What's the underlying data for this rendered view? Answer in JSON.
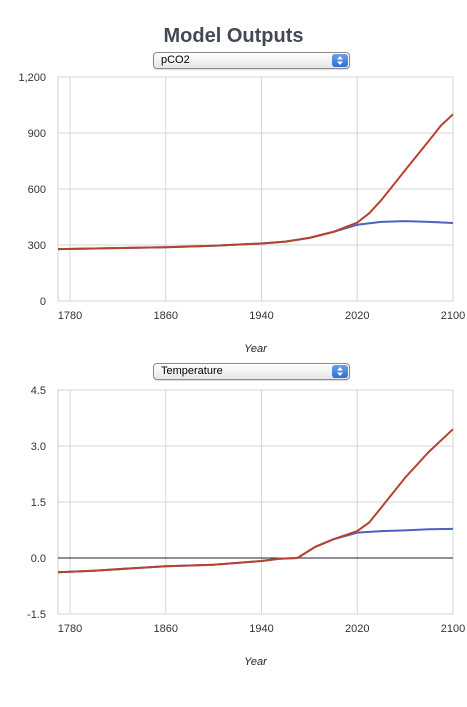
{
  "title": "Model Outputs",
  "chart_data": [
    {
      "type": "line",
      "selector_value": "pCO2",
      "xlabel": "Year",
      "ylabel": "",
      "xlim": [
        1770,
        2100
      ],
      "ylim": [
        0,
        1200
      ],
      "x_ticks": [
        "1780",
        "1860",
        "1940",
        "2020",
        "2100"
      ],
      "y_ticks": [
        "1,200",
        "900",
        "600",
        "300",
        "0"
      ],
      "grid": true,
      "series": [
        {
          "color": "#4a63c0",
          "x": [
            1770,
            1800,
            1860,
            1900,
            1940,
            1960,
            1980,
            2000,
            2020,
            2040,
            2060,
            2080,
            2100
          ],
          "y": [
            278,
            281,
            288,
            296,
            308,
            318,
            338,
            370,
            408,
            424,
            428,
            424,
            418
          ]
        },
        {
          "color": "#b8432d",
          "x": [
            1770,
            1800,
            1860,
            1900,
            1940,
            1960,
            1980,
            2000,
            2020,
            2030,
            2040,
            2050,
            2060,
            2070,
            2080,
            2090,
            2100
          ],
          "y": [
            278,
            281,
            288,
            296,
            308,
            318,
            338,
            370,
            420,
            470,
            540,
            620,
            700,
            780,
            860,
            940,
            1000
          ]
        }
      ]
    },
    {
      "type": "line",
      "selector_value": "Temperature",
      "xlabel": "Year",
      "ylabel": "",
      "xlim": [
        1770,
        2100
      ],
      "ylim": [
        -1.5,
        4.5
      ],
      "x_ticks": [
        "1780",
        "1860",
        "1940",
        "2020",
        "2100"
      ],
      "y_ticks": [
        "4.5",
        "3.0",
        "1.5",
        "0.0",
        "-1.5"
      ],
      "grid": true,
      "zero_line": true,
      "series": [
        {
          "color": "#4a63c0",
          "x": [
            1770,
            1800,
            1860,
            1900,
            1940,
            1955,
            1970,
            1985,
            2000,
            2020,
            2040,
            2060,
            2080,
            2100
          ],
          "y": [
            -0.38,
            -0.34,
            -0.22,
            -0.18,
            -0.08,
            -0.02,
            0.0,
            0.3,
            0.5,
            0.68,
            0.72,
            0.74,
            0.77,
            0.78
          ]
        },
        {
          "color": "#b8432d",
          "x": [
            1770,
            1800,
            1860,
            1900,
            1940,
            1955,
            1970,
            1985,
            2000,
            2020,
            2030,
            2040,
            2060,
            2080,
            2100
          ],
          "y": [
            -0.38,
            -0.34,
            -0.22,
            -0.18,
            -0.08,
            -0.02,
            0.0,
            0.3,
            0.5,
            0.72,
            0.95,
            1.35,
            2.15,
            2.85,
            3.45
          ]
        }
      ]
    }
  ]
}
